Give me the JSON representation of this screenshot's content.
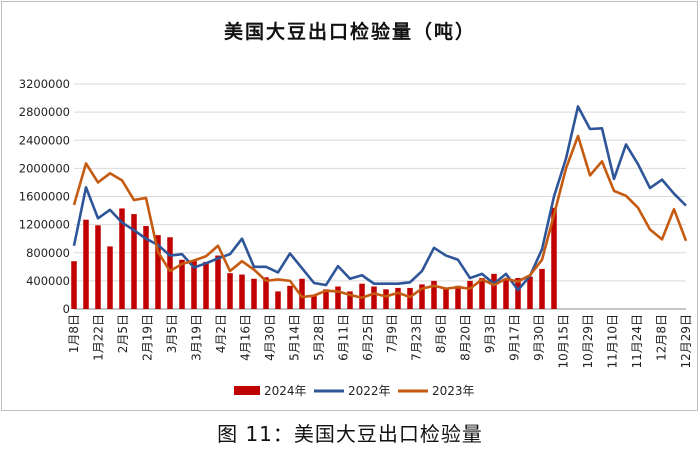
{
  "caption": "图 11：美国大豆出口检验量",
  "chart_data": {
    "type": "bar+line",
    "title": "美国大豆出口检验量（吨）",
    "ylim": [
      0,
      3200000
    ],
    "yticks": [
      0,
      400000,
      800000,
      1200000,
      1600000,
      2000000,
      2400000,
      2800000,
      3200000
    ],
    "x_labels": [
      "1月8日",
      "1月22日",
      "2月5日",
      "2月19日",
      "3月5日",
      "3月19日",
      "4月2日",
      "4月16日",
      "4月30日",
      "5月14日",
      "5月28日",
      "6月11日",
      "6月25日",
      "7月9日",
      "7月23日",
      "8月6日",
      "8月20日",
      "9月3日",
      "9月17日",
      "9月30日",
      "10月15日",
      "10月29日",
      "11月10日",
      "11月24日",
      "12月8日",
      "12月29日"
    ],
    "legend": [
      "2024年",
      "2022年",
      "2023年"
    ],
    "legend_position": "bottom",
    "colors": {
      "2024": "#c00000",
      "2022": "#2e5597",
      "2023": "#c55a11"
    },
    "series": [
      {
        "name": "2024年",
        "type": "bar",
        "values": [
          680000,
          1270000,
          1190000,
          890000,
          1430000,
          1350000,
          1180000,
          1050000,
          1020000,
          700000,
          690000,
          670000,
          760000,
          510000,
          490000,
          430000,
          450000,
          250000,
          330000,
          430000,
          200000,
          280000,
          320000,
          250000,
          360000,
          320000,
          280000,
          300000,
          300000,
          350000,
          400000,
          290000,
          330000,
          400000,
          440000,
          500000,
          410000,
          440000,
          460000,
          570000,
          1440000
        ]
      },
      {
        "name": "2022年",
        "type": "line",
        "values": [
          900000,
          1730000,
          1290000,
          1410000,
          1230000,
          1120000,
          1000000,
          910000,
          760000,
          780000,
          590000,
          650000,
          720000,
          780000,
          1000000,
          600000,
          600000,
          520000,
          790000,
          580000,
          370000,
          340000,
          610000,
          430000,
          480000,
          360000,
          360000,
          360000,
          380000,
          540000,
          870000,
          760000,
          700000,
          440000,
          500000,
          360000,
          500000,
          270000,
          470000,
          850000,
          1600000,
          2140000,
          2880000,
          2560000,
          2570000,
          1850000,
          2340000,
          2060000,
          1720000,
          1840000,
          1640000,
          1470000
        ]
      },
      {
        "name": "2023年",
        "type": "line",
        "values": [
          1480000,
          2070000,
          1800000,
          1930000,
          1830000,
          1550000,
          1580000,
          810000,
          540000,
          640000,
          690000,
          750000,
          900000,
          540000,
          680000,
          560000,
          400000,
          420000,
          400000,
          170000,
          190000,
          260000,
          250000,
          200000,
          160000,
          220000,
          180000,
          230000,
          170000,
          290000,
          330000,
          290000,
          310000,
          290000,
          420000,
          340000,
          430000,
          390000,
          480000,
          700000,
          1340000,
          2000000,
          2460000,
          1900000,
          2100000,
          1680000,
          1610000,
          1440000,
          1130000,
          990000,
          1420000,
          970000
        ]
      }
    ]
  }
}
